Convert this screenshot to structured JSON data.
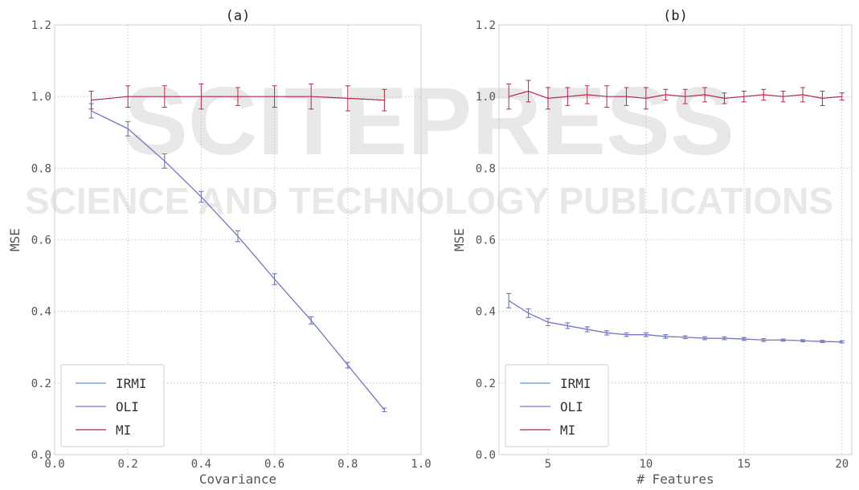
{
  "chart_data": [
    {
      "type": "line",
      "title": "(a)",
      "xlabel": "Covariance",
      "ylabel": "MSE",
      "xlim": [
        0.0,
        1.0
      ],
      "ylim": [
        0.0,
        1.2
      ],
      "xticks": [
        "0.0",
        "0.2",
        "0.4",
        "0.6",
        "0.8",
        "1.0"
      ],
      "yticks": [
        "0.0",
        "0.2",
        "0.4",
        "0.6",
        "0.8",
        "1.0",
        "1.2"
      ],
      "grid": true,
      "legend_position": "lower-left",
      "x": [
        0.1,
        0.2,
        0.3,
        0.4,
        0.5,
        0.6,
        0.7,
        0.8,
        0.9
      ],
      "series": [
        {
          "name": "IRMI",
          "color": "#5a9bd4",
          "values": [
            0.96,
            0.91,
            0.82,
            0.72,
            0.61,
            0.49,
            0.375,
            0.25,
            0.125
          ],
          "errors": [
            0.02,
            0.02,
            0.02,
            0.015,
            0.015,
            0.015,
            0.01,
            0.008,
            0.005
          ]
        },
        {
          "name": "OLI",
          "color": "#7b78c2",
          "values": [
            0.96,
            0.91,
            0.82,
            0.72,
            0.61,
            0.49,
            0.375,
            0.25,
            0.125
          ],
          "errors": [
            0.02,
            0.02,
            0.02,
            0.015,
            0.015,
            0.015,
            0.01,
            0.008,
            0.005
          ]
        },
        {
          "name": "MI",
          "color": "#b8284a",
          "values": [
            0.99,
            1.0,
            1.0,
            1.0,
            1.0,
            1.0,
            1.0,
            0.995,
            0.99
          ],
          "errors": [
            0.025,
            0.03,
            0.03,
            0.035,
            0.025,
            0.03,
            0.035,
            0.035,
            0.03
          ]
        }
      ]
    },
    {
      "type": "line",
      "title": "(b)",
      "xlabel": "# Features",
      "ylabel": "MSE",
      "xlim": [
        2.5,
        20.5
      ],
      "ylim": [
        0.0,
        1.2
      ],
      "xticks": [
        "5",
        "10",
        "15",
        "20"
      ],
      "yticks": [
        "0.0",
        "0.2",
        "0.4",
        "0.6",
        "0.8",
        "1.0",
        "1.2"
      ],
      "grid": true,
      "legend_position": "lower-left",
      "x": [
        3,
        4,
        5,
        6,
        7,
        8,
        9,
        10,
        11,
        12,
        13,
        14,
        15,
        16,
        17,
        18,
        19,
        20
      ],
      "series": [
        {
          "name": "IRMI",
          "color": "#5a9bd4",
          "values": [
            0.43,
            0.395,
            0.37,
            0.36,
            0.35,
            0.34,
            0.335,
            0.335,
            0.33,
            0.328,
            0.325,
            0.325,
            0.323,
            0.32,
            0.32,
            0.318,
            0.316,
            0.315
          ],
          "errors": [
            0.02,
            0.012,
            0.01,
            0.008,
            0.007,
            0.006,
            0.005,
            0.005,
            0.005,
            0.004,
            0.004,
            0.004,
            0.004,
            0.004,
            0.003,
            0.003,
            0.003,
            0.003
          ]
        },
        {
          "name": "OLI",
          "color": "#7b78c2",
          "values": [
            0.43,
            0.395,
            0.37,
            0.36,
            0.35,
            0.34,
            0.335,
            0.335,
            0.33,
            0.328,
            0.325,
            0.325,
            0.323,
            0.32,
            0.32,
            0.318,
            0.316,
            0.315
          ],
          "errors": [
            0.02,
            0.012,
            0.01,
            0.008,
            0.007,
            0.006,
            0.005,
            0.005,
            0.005,
            0.004,
            0.004,
            0.004,
            0.004,
            0.004,
            0.003,
            0.003,
            0.003,
            0.003
          ]
        },
        {
          "name": "MI",
          "color": "#b8284a",
          "values": [
            1.0,
            1.015,
            0.995,
            1.0,
            1.005,
            1.0,
            1.0,
            0.995,
            1.005,
            1.0,
            1.005,
            0.995,
            1.0,
            1.005,
            1.0,
            1.005,
            0.995,
            1.0
          ],
          "errors": [
            0.035,
            0.03,
            0.03,
            0.025,
            0.025,
            0.03,
            0.025,
            0.03,
            0.015,
            0.02,
            0.02,
            0.015,
            0.015,
            0.015,
            0.015,
            0.02,
            0.02,
            0.01
          ]
        }
      ]
    }
  ],
  "watermark": {
    "line1": "SCITEPRESS",
    "line2": "SCIENCE AND TECHNOLOGY PUBLICATIONS"
  }
}
